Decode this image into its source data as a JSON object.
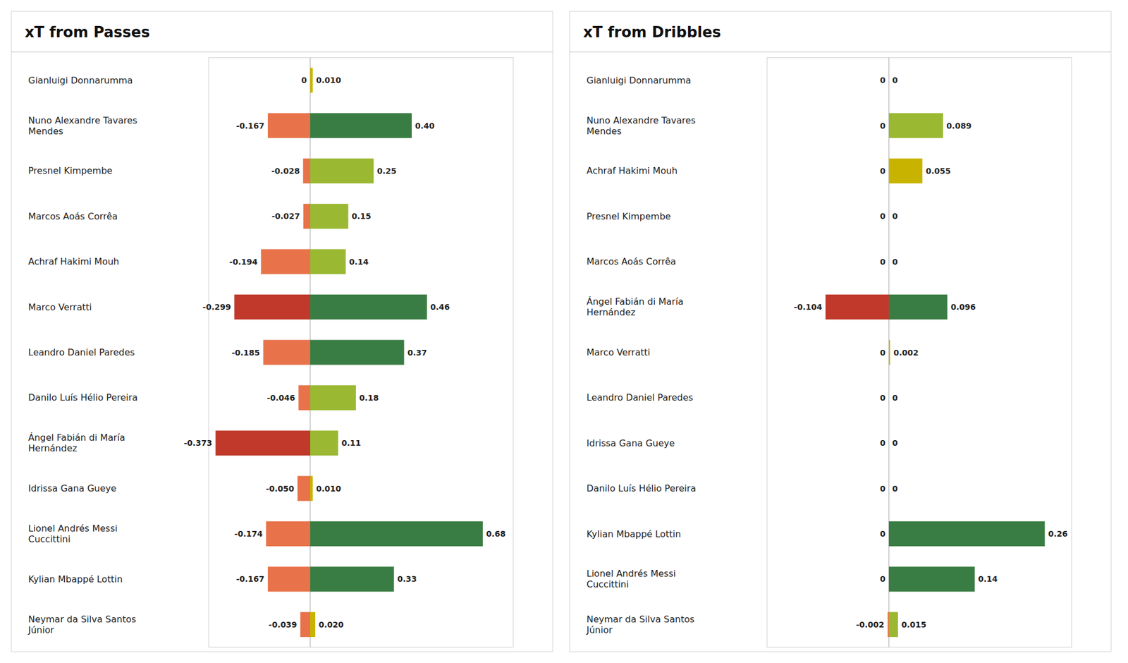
{
  "chart_data": [
    {
      "type": "bar",
      "orientation": "horizontal",
      "title": "xT from Passes",
      "categories": [
        "Gianluigi Donnarumma",
        "Nuno Alexandre Tavares\nMendes",
        "Presnel Kimpembe",
        "Marcos Aoás Corrêa",
        "Achraf Hakimi Mouh",
        "Marco Verratti",
        "Leandro Daniel Paredes",
        "Danilo Luís Hélio Pereira",
        "Ángel Fabián di María\nHernández",
        "Idrissa Gana Gueye",
        "Lionel Andrés Messi\nCuccittini",
        "Kylian Mbappé Lottin",
        "Neymar da Silva Santos\nJúnior"
      ],
      "series": [
        {
          "values": [
            0,
            -0.167,
            -0.028,
            -0.027,
            -0.194,
            -0.299,
            -0.185,
            -0.046,
            -0.373,
            -0.05,
            -0.174,
            -0.167,
            -0.039
          ],
          "value_labels": [
            "0",
            "-0.167",
            "-0.028",
            "-0.027",
            "-0.194",
            "-0.299",
            "-0.185",
            "-0.046",
            "-0.373",
            "-0.050",
            "-0.174",
            "-0.167",
            "-0.039"
          ],
          "colors": [
            "#E8734A",
            "#E8734A",
            "#E8734A",
            "#E8734A",
            "#E8734A",
            "#C0392B",
            "#E8734A",
            "#E8734A",
            "#C0392B",
            "#E8734A",
            "#E8734A",
            "#E8734A",
            "#E8734A"
          ]
        },
        {
          "values": [
            0.01,
            0.4,
            0.25,
            0.15,
            0.14,
            0.46,
            0.37,
            0.18,
            0.11,
            0.01,
            0.68,
            0.33,
            0.02
          ],
          "value_labels": [
            "0.010",
            "0.40",
            "0.25",
            "0.15",
            "0.14",
            "0.46",
            "0.37",
            "0.18",
            "0.11",
            "0.010",
            "0.68",
            "0.33",
            "0.020"
          ],
          "colors": [
            "#C8B400",
            "#3A7D44",
            "#9AB832",
            "#9AB832",
            "#9AB832",
            "#3A7D44",
            "#3A7D44",
            "#9AB832",
            "#9AB832",
            "#C8B400",
            "#3A7D44",
            "#3A7D44",
            "#C8B400"
          ]
        }
      ],
      "xlim": [
        -0.4,
        0.8
      ],
      "data_labels": true,
      "tick_labels": false
    },
    {
      "type": "bar",
      "orientation": "horizontal",
      "title": "xT from Dribbles",
      "categories": [
        "Gianluigi Donnarumma",
        "Nuno Alexandre Tavares\nMendes",
        "Achraf Hakimi Mouh",
        "Presnel Kimpembe",
        "Marcos Aoás Corrêa",
        "Ángel Fabián di María\nHernández",
        "Marco Verratti",
        "Leandro Daniel Paredes",
        "Idrissa Gana Gueye",
        "Danilo Luís Hélio Pereira",
        "Kylian Mbappé Lottin",
        "Lionel Andrés Messi\nCuccittini",
        "Neymar da Silva Santos\nJúnior"
      ],
      "series": [
        {
          "values": [
            0,
            0,
            0,
            0,
            0,
            -0.104,
            0,
            0,
            0,
            0,
            0,
            0,
            -0.002
          ],
          "value_labels": [
            "0",
            "0",
            "0",
            "0",
            "0",
            "-0.104",
            "0",
            "0",
            "0",
            "0",
            "0",
            "0",
            "-0.002"
          ],
          "colors": [
            "#E8734A",
            "#E8734A",
            "#E8734A",
            "#E8734A",
            "#E8734A",
            "#C0392B",
            "#E8734A",
            "#E8734A",
            "#E8734A",
            "#E8734A",
            "#E8734A",
            "#E8734A",
            "#E8734A"
          ]
        },
        {
          "values": [
            0,
            0.089,
            0.055,
            0,
            0,
            0.096,
            0.002,
            0,
            0,
            0,
            0.256,
            0.141,
            0.015
          ],
          "value_labels": [
            "0",
            "0.089",
            "0.055",
            "0",
            "0",
            "0.096",
            "0.002",
            "0",
            "0",
            "0",
            "0.26",
            "0.14",
            "0.015"
          ],
          "colors": [
            "#C8B400",
            "#9AB832",
            "#C8B400",
            "#C8B400",
            "#C8B400",
            "#3A7D44",
            "#C8B400",
            "#C8B400",
            "#C8B400",
            "#C8B400",
            "#3A7D44",
            "#3A7D44",
            "#9AB832"
          ]
        }
      ],
      "xlim": [
        -0.2,
        0.3
      ],
      "data_labels": true,
      "tick_labels": false
    }
  ]
}
